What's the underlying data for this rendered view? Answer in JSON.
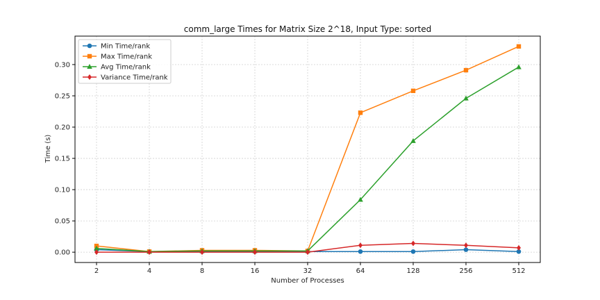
{
  "chart_data": {
    "type": "line",
    "title": "comm_large Times for Matrix Size 2^18, Input Type: sorted",
    "xlabel": "Number of Processes",
    "ylabel": "Time (s)",
    "categories": [
      "2",
      "4",
      "8",
      "16",
      "32",
      "64",
      "128",
      "256",
      "512"
    ],
    "ylim": [
      -0.0165,
      0.3455
    ],
    "yticks": [
      "0.00",
      "0.05",
      "0.10",
      "0.15",
      "0.20",
      "0.25",
      "0.30"
    ],
    "grid": true,
    "legend_placement": "top-left",
    "series": [
      {
        "name": "Min Time/rank",
        "color": "#1f77b4",
        "marker": "circle",
        "values": [
          0.004,
          0.001,
          0.001,
          0.001,
          0.001,
          0.001,
          0.001,
          0.004,
          0.001
        ]
      },
      {
        "name": "Max Time/rank",
        "color": "#ff7f0e",
        "marker": "square",
        "values": [
          0.01,
          0.001,
          0.003,
          0.003,
          0.002,
          0.223,
          0.258,
          0.291,
          0.329
        ]
      },
      {
        "name": "Avg Time/rank",
        "color": "#2ca02c",
        "marker": "triangle",
        "values": [
          0.006,
          0.001,
          0.002,
          0.002,
          0.002,
          0.084,
          0.178,
          0.246,
          0.296
        ]
      },
      {
        "name": "Variance Time/rank",
        "color": "#d62728",
        "marker": "diamond",
        "values": [
          0.0,
          0.0,
          0.0,
          0.0,
          0.0,
          0.011,
          0.014,
          0.011,
          0.007
        ]
      }
    ]
  }
}
